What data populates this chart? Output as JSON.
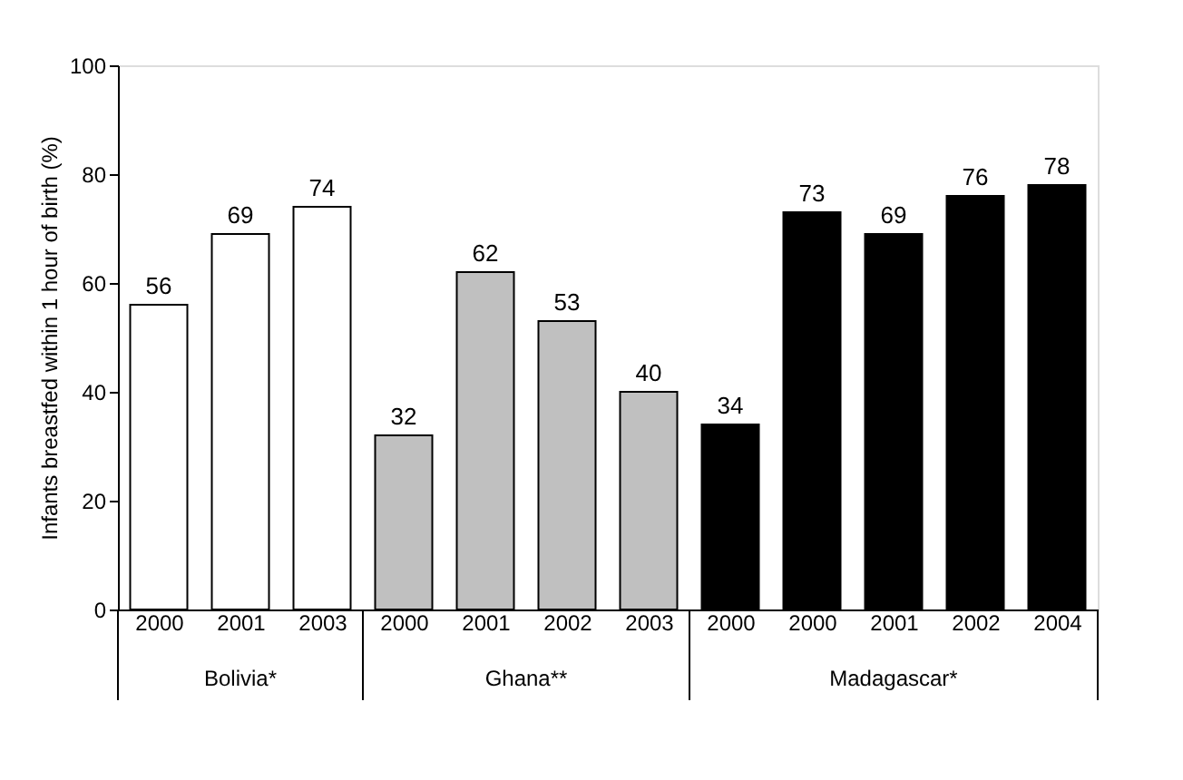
{
  "chart_data": {
    "type": "bar",
    "ylabel": "Infants breastfed within 1 hour of birth (%)",
    "categories": [
      "2000",
      "2001",
      "2003",
      "2000",
      "2001",
      "2002",
      "2003",
      "2000",
      "2000",
      "2001",
      "2002",
      "2004"
    ],
    "values": [
      56,
      69,
      74,
      32,
      62,
      53,
      40,
      34,
      73,
      69,
      76,
      78
    ],
    "colors": [
      "#ffffff",
      "#ffffff",
      "#ffffff",
      "#c0c0c0",
      "#c0c0c0",
      "#c0c0c0",
      "#c0c0c0",
      "#000000",
      "#000000",
      "#000000",
      "#000000",
      "#000000"
    ],
    "annotations": [
      "Bolivia*",
      "Ghana**",
      "Madagascar*"
    ],
    "ylim": [
      0,
      100
    ],
    "yticks": [
      0,
      20,
      40,
      60,
      80,
      100
    ],
    "data_labels": true,
    "grid": false
  }
}
